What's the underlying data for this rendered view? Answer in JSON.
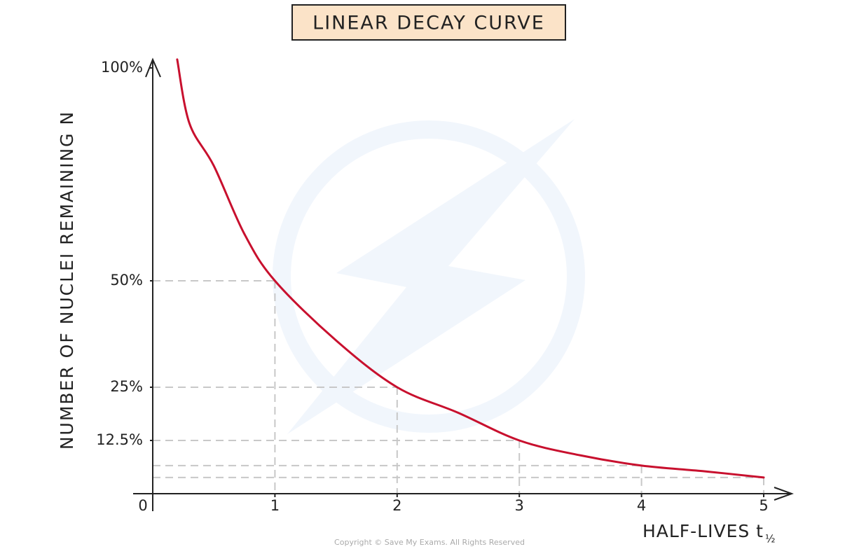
{
  "chart_data": {
    "type": "line",
    "title": "LINEAR DECAY CURVE",
    "y_label": "NUMBER OF NUCLEI REMAINING N",
    "x_label": "HALF-LIVES t",
    "x_label_sub": "½",
    "copyright": "Copyright © Save My Exams. All Rights Reserved",
    "x": [
      0.2,
      0.3,
      0.5,
      0.75,
      1,
      1.5,
      2,
      2.5,
      3,
      3.5,
      4,
      4.5,
      5
    ],
    "series": [
      {
        "name": "N",
        "color": "#c8102e",
        "values": [
          102,
          87,
          77,
          61,
          50,
          36,
          25,
          19,
          12.5,
          9,
          6.6,
          5.3,
          3.8
        ]
      }
    ],
    "xlim": [
      0,
      5
    ],
    "ylim": [
      0,
      100
    ],
    "xticks": [
      0,
      1,
      2,
      3,
      4,
      5
    ],
    "yticks": [
      {
        "value": 12.5,
        "label": "12.5%"
      },
      {
        "value": 25,
        "label": "25%"
      },
      {
        "value": 50,
        "label": "50%"
      },
      {
        "value": 100,
        "label": "100%"
      }
    ]
  }
}
